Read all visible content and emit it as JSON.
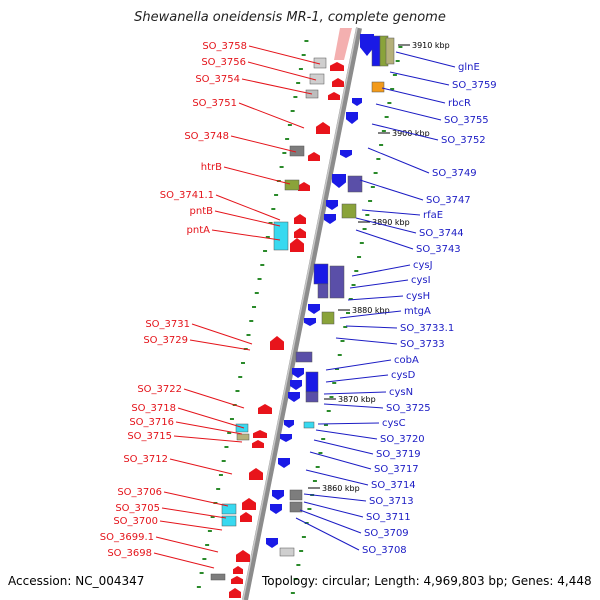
{
  "title": "Shewanella oneidensis MR-1, complete genome",
  "footer": {
    "accession": "Accession: NC_004347",
    "summary": "Topology: circular; Length: 4,969,803 bp; Genes: 4,448"
  },
  "colors": {
    "backbone": "#8c8c8c",
    "left_label": "#e4141b",
    "right_label": "#1c1cc4",
    "ticks": "#2a8a2a"
  },
  "kbp_markers": [
    "3910 kbp",
    "3900 kbp",
    "3890 kbp",
    "3880 kbp",
    "3870 kbp",
    "3860 kbp"
  ],
  "left_labels": [
    "SO_3758",
    "SO_3756",
    "SO_3754",
    "SO_3751",
    "SO_3748",
    "htrB",
    "SO_3741.1",
    "pntB",
    "pntA",
    "SO_3731",
    "SO_3729",
    "SO_3722",
    "SO_3718",
    "SO_3716",
    "SO_3715",
    "SO_3712",
    "SO_3706",
    "SO_3705",
    "SO_3700",
    "SO_3699.1",
    "SO_3698"
  ],
  "right_labels": [
    "glnE",
    "SO_3759",
    "rbcR",
    "SO_3755",
    "SO_3752",
    "SO_3749",
    "SO_3747",
    "rfaE",
    "SO_3744",
    "SO_3743",
    "cysJ",
    "cysI",
    "cysH",
    "mtgA",
    "SO_3733.1",
    "SO_3733",
    "cobA",
    "cysD",
    "cysN",
    "SO_3725",
    "cysC",
    "SO_3720",
    "SO_3719",
    "SO_3717",
    "SO_3714",
    "SO_3713",
    "SO_3711",
    "SO_3709",
    "SO_3708"
  ]
}
